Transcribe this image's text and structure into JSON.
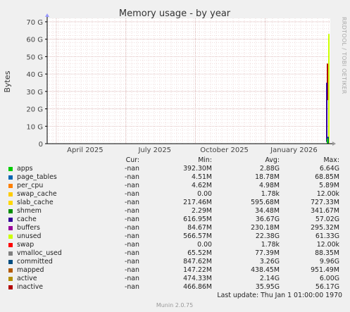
{
  "chart_data": {
    "type": "area",
    "title": "Memory usage - by year",
    "ylabel": "Bytes",
    "xlabel": "",
    "y_ticks": [
      "0",
      "10 G",
      "20 G",
      "30 G",
      "40 G",
      "50 G",
      "60 G",
      "70 G"
    ],
    "ylim": [
      0,
      72
    ],
    "x_ticks": [
      "April 2025",
      "July 2025",
      "October 2025",
      "January 2026"
    ],
    "legend_headers": {
      "cur": "Cur:",
      "min": "Min:",
      "avg": "Avg:",
      "max": "Max:"
    },
    "series": [
      {
        "name": "apps",
        "color": "#00cc00",
        "cur": "-nan",
        "min": "392.30M",
        "avg": "2.88G",
        "max": "6.64G"
      },
      {
        "name": "page_tables",
        "color": "#0066b3",
        "cur": "-nan",
        "min": "4.51M",
        "avg": "18.78M",
        "max": "68.85M"
      },
      {
        "name": "per_cpu",
        "color": "#ff8000",
        "cur": "-nan",
        "min": "4.62M",
        "avg": "4.98M",
        "max": "5.89M"
      },
      {
        "name": "swap_cache",
        "color": "#ffcc00",
        "cur": "-nan",
        "min": "0.00",
        "avg": "1.78k",
        "max": "12.00k"
      },
      {
        "name": "slab_cache",
        "color": "#ffd700",
        "cur": "-nan",
        "min": "217.46M",
        "avg": "595.68M",
        "max": "727.33M"
      },
      {
        "name": "shmem",
        "color": "#008f00",
        "cur": "-nan",
        "min": "2.29M",
        "avg": "34.48M",
        "max": "341.67M"
      },
      {
        "name": "cache",
        "color": "#330099",
        "cur": "-nan",
        "min": "616.95M",
        "avg": "36.67G",
        "max": "57.02G"
      },
      {
        "name": "buffers",
        "color": "#990099",
        "cur": "-nan",
        "min": "84.67M",
        "avg": "230.18M",
        "max": "295.32M"
      },
      {
        "name": "unused",
        "color": "#ccff00",
        "cur": "-nan",
        "min": "566.57M",
        "avg": "22.38G",
        "max": "61.33G"
      },
      {
        "name": "swap",
        "color": "#ff0000",
        "cur": "-nan",
        "min": "0.00",
        "avg": "1.78k",
        "max": "12.00k"
      },
      {
        "name": "vmalloc_used",
        "color": "#808080",
        "cur": "-nan",
        "min": "65.52M",
        "avg": "77.39M",
        "max": "88.35M"
      },
      {
        "name": "committed",
        "color": "#004d80",
        "cur": "-nan",
        "min": "847.62M",
        "avg": "3.26G",
        "max": "9.96G"
      },
      {
        "name": "mapped",
        "color": "#b35a00",
        "cur": "-nan",
        "min": "147.22M",
        "avg": "438.45M",
        "max": "951.49M"
      },
      {
        "name": "active",
        "color": "#b38f00",
        "cur": "-nan",
        "min": "474.33M",
        "avg": "2.14G",
        "max": "6.00G"
      },
      {
        "name": "inactive",
        "color": "#b30000",
        "cur": "-nan",
        "min": "466.86M",
        "avg": "35.95G",
        "max": "56.17G"
      }
    ],
    "last_update": "Last update:  Thu Jan  1 01:00:00 1970",
    "side_label": "RRDTOOL / TOBI OETIKER",
    "footer": "Munin 2.0.75",
    "grid": true,
    "legend_position": "bottom"
  }
}
